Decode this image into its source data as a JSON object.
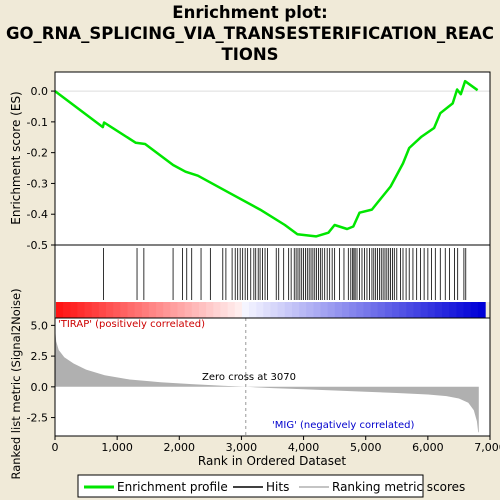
{
  "title_lines": [
    "Enrichment plot:",
    "GO_RNA_SPLICING_VIA_TRANSESTERIFICATION_REAC",
    "TIONS"
  ],
  "colors": {
    "background": "#f0ead8",
    "enrichment_line": "#00e600",
    "hits": "#000000",
    "metric_fill": "#b0b0b0",
    "positive_label": "#cc0000",
    "negative_label": "#0000cc",
    "zero_cross_line": "#999999"
  },
  "annotations": {
    "positive": "'TIRAP' (positively correlated)",
    "negative": "'MIG' (negatively correlated)",
    "zero_cross": "Zero cross at 3070"
  },
  "legend": {
    "items": [
      {
        "label": "Enrichment profile",
        "icon": "green-line"
      },
      {
        "label": "Hits",
        "icon": "black-tick"
      },
      {
        "label": "Ranking metric scores",
        "icon": "gray-line"
      }
    ]
  },
  "chart_data": [
    {
      "type": "line",
      "name": "enrichment-score",
      "ylabel": "Enrichment score (ES)",
      "ylim": [
        -0.5,
        0.05
      ],
      "yticks": [
        0.0,
        -0.1,
        -0.2,
        -0.3,
        -0.4,
        -0.5
      ],
      "ytick_labels": [
        "0.0",
        "-0.1",
        "-0.2",
        "-0.3",
        "-0.4",
        "-0.5"
      ],
      "xlim": [
        0,
        7000
      ],
      "grid": false,
      "points": [
        [
          0,
          0.0
        ],
        [
          770,
          -0.117
        ],
        [
          790,
          -0.102
        ],
        [
          1300,
          -0.168
        ],
        [
          1450,
          -0.172
        ],
        [
          1900,
          -0.24
        ],
        [
          2100,
          -0.262
        ],
        [
          2300,
          -0.275
        ],
        [
          2800,
          -0.33
        ],
        [
          3300,
          -0.385
        ],
        [
          3700,
          -0.435
        ],
        [
          3900,
          -0.465
        ],
        [
          4200,
          -0.472
        ],
        [
          4400,
          -0.46
        ],
        [
          4500,
          -0.435
        ],
        [
          4700,
          -0.448
        ],
        [
          4800,
          -0.44
        ],
        [
          4900,
          -0.395
        ],
        [
          5100,
          -0.385
        ],
        [
          5200,
          -0.36
        ],
        [
          5400,
          -0.31
        ],
        [
          5600,
          -0.235
        ],
        [
          5700,
          -0.185
        ],
        [
          5900,
          -0.148
        ],
        [
          6100,
          -0.12
        ],
        [
          6200,
          -0.072
        ],
        [
          6400,
          -0.04
        ],
        [
          6470,
          0.005
        ],
        [
          6530,
          -0.01
        ],
        [
          6600,
          0.032
        ],
        [
          6800,
          0.003
        ]
      ],
      "hits": [
        780,
        1320,
        1430,
        1900,
        2050,
        2120,
        2200,
        2350,
        2500,
        2700,
        2750,
        2850,
        2900,
        2940,
        2980,
        3020,
        3060,
        3100,
        3150,
        3200,
        3230,
        3270,
        3300,
        3340,
        3380,
        3420,
        3560,
        3600,
        3680,
        3760,
        3800,
        3850,
        3880,
        3910,
        3940,
        3970,
        4000,
        4030,
        4060,
        4090,
        4120,
        4150,
        4180,
        4210,
        4240,
        4270,
        4300,
        4340,
        4380,
        4420,
        4460,
        4500,
        4580,
        4650,
        4720,
        4760,
        4790,
        4810,
        4830,
        4860,
        4900,
        4940,
        4980,
        5020,
        5060,
        5100,
        5130,
        5160,
        5190,
        5220,
        5250,
        5280,
        5310,
        5340,
        5370,
        5400,
        5430,
        5460,
        5500,
        5560,
        5600,
        5650,
        5700,
        5760,
        5820,
        5880,
        5940,
        6000,
        6060,
        6120,
        6200,
        6280,
        6350,
        6430,
        6480,
        6580,
        6610
      ]
    },
    {
      "type": "area",
      "name": "ranked-list-metric",
      "ylabel": "Ranked list metric (Signal2Noise)",
      "xlabel": "Rank in Ordered Dataset",
      "ylim": [
        -3.8,
        5.0
      ],
      "yticks": [
        5.0,
        2.5,
        0.0,
        -2.5
      ],
      "ytick_labels": [
        "5.0",
        "2.5",
        "0.0",
        "-2.5"
      ],
      "xlim": [
        0,
        7000
      ],
      "xticks": [
        0,
        1000,
        2000,
        3000,
        4000,
        5000,
        6000,
        7000
      ],
      "xtick_labels": [
        "0",
        "1,000",
        "2,000",
        "3,000",
        "4,000",
        "5,000",
        "6,000",
        "7,000"
      ],
      "points": [
        [
          0,
          4.8
        ],
        [
          20,
          3.7
        ],
        [
          60,
          3.0
        ],
        [
          150,
          2.4
        ],
        [
          300,
          1.9
        ],
        [
          500,
          1.4
        ],
        [
          800,
          0.95
        ],
        [
          1200,
          0.6
        ],
        [
          1700,
          0.38
        ],
        [
          2200,
          0.22
        ],
        [
          2700,
          0.09
        ],
        [
          3070,
          0.0
        ],
        [
          3500,
          -0.1
        ],
        [
          4000,
          -0.2
        ],
        [
          4500,
          -0.3
        ],
        [
          5000,
          -0.4
        ],
        [
          5500,
          -0.5
        ],
        [
          6000,
          -0.62
        ],
        [
          6300,
          -0.75
        ],
        [
          6500,
          -0.95
        ],
        [
          6650,
          -1.3
        ],
        [
          6740,
          -1.9
        ],
        [
          6790,
          -2.8
        ],
        [
          6810,
          -3.7
        ],
        [
          6820,
          -3.7
        ]
      ],
      "zero_cross": 3070
    }
  ]
}
